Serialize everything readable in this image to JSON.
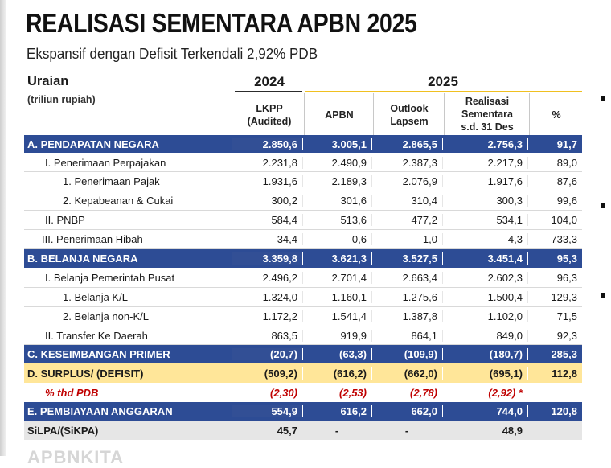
{
  "header": {
    "title": "REALISASI SEMENTARA APBN 2025",
    "subtitle": "Ekspansif dengan Defisit Terkendali 2,92% PDB"
  },
  "table": {
    "uraian_label": "Uraian",
    "unit_label": "(triliun rupiah)",
    "year_2024": "2024",
    "year_2025": "2025",
    "columns": [
      {
        "line1": "LKPP",
        "line2": "(Audited)",
        "line3": ""
      },
      {
        "line1": "APBN",
        "line2": "",
        "line3": ""
      },
      {
        "line1": "Outlook",
        "line2": "Lapsem",
        "line3": ""
      },
      {
        "line1": "Realisasi",
        "line2": "Sementara",
        "line3": "s.d. 31 Des"
      },
      {
        "line1": "%",
        "line2": "",
        "line3": ""
      }
    ],
    "rows": [
      {
        "label": "A. PENDAPATAN NEGARA",
        "values": [
          "2.850,6",
          "3.005,1",
          "2.865,5",
          "2.756,3",
          "91,7"
        ]
      },
      {
        "label": "I. Penerimaan Perpajakan",
        "values": [
          "2.231,8",
          "2.490,9",
          "2.387,3",
          "2.217,9",
          "89,0"
        ]
      },
      {
        "label": "1. Penerimaan Pajak",
        "values": [
          "1.931,6",
          "2.189,3",
          "2.076,9",
          "1.917,6",
          "87,6"
        ]
      },
      {
        "label": "2. Kepabeanan & Cukai",
        "values": [
          "300,2",
          "301,6",
          "310,4",
          "300,3",
          "99,6"
        ]
      },
      {
        "label": "II. PNBP",
        "values": [
          "584,4",
          "513,6",
          "477,2",
          "534,1",
          "104,0"
        ]
      },
      {
        "label": "III. Penerimaan Hibah",
        "values": [
          "34,4",
          "0,6",
          "1,0",
          "4,3",
          "733,3"
        ]
      },
      {
        "label": "B. BELANJA NEGARA",
        "values": [
          "3.359,8",
          "3.621,3",
          "3.527,5",
          "3.451,4",
          "95,3"
        ]
      },
      {
        "label": "I. Belanja Pemerintah Pusat",
        "values": [
          "2.496,2",
          "2.701,4",
          "2.663,4",
          "2.602,3",
          "96,3"
        ]
      },
      {
        "label": "1. Belanja K/L",
        "values": [
          "1.324,0",
          "1.160,1",
          "1.275,6",
          "1.500,4",
          "129,3"
        ]
      },
      {
        "label": "2. Belanja non-K/L",
        "values": [
          "1.172,2",
          "1.541,4",
          "1.387,8",
          "1.102,0",
          "71,5"
        ]
      },
      {
        "label": "II. Transfer Ke Daerah",
        "values": [
          "863,5",
          "919,9",
          "864,1",
          "849,0",
          "92,3"
        ]
      },
      {
        "label": "C. KESEIMBANGAN PRIMER",
        "values": [
          "(20,7)",
          "(63,3)",
          "(109,9)",
          "(180,7)",
          "285,3"
        ]
      },
      {
        "label": "D. SURPLUS/ (DEFISIT)",
        "values": [
          "(509,2)",
          "(616,2)",
          "(662,0)",
          "(695,1)",
          "112,8"
        ]
      },
      {
        "label": "% thd PDB",
        "values": [
          "(2,30)",
          "(2,53)",
          "(2,78)",
          "(2,92) *",
          ""
        ]
      },
      {
        "label": "E. PEMBIAYAAN ANGGARAN",
        "values": [
          "554,9",
          "616,2",
          "662,0",
          "744,0",
          "120,8"
        ]
      },
      {
        "label": "SiLPA/(SiKPA)",
        "values": [
          "45,7",
          "-",
          "-",
          "48,9",
          ""
        ]
      }
    ]
  },
  "footer_ghost": "APBNKITA",
  "colors": {
    "section_blue": "#2d4c95",
    "highlight_yellow": "#ffe699",
    "pdb_red": "#c00000",
    "gold_rule": "#f0c020",
    "grey_row": "#e6e6e6"
  }
}
